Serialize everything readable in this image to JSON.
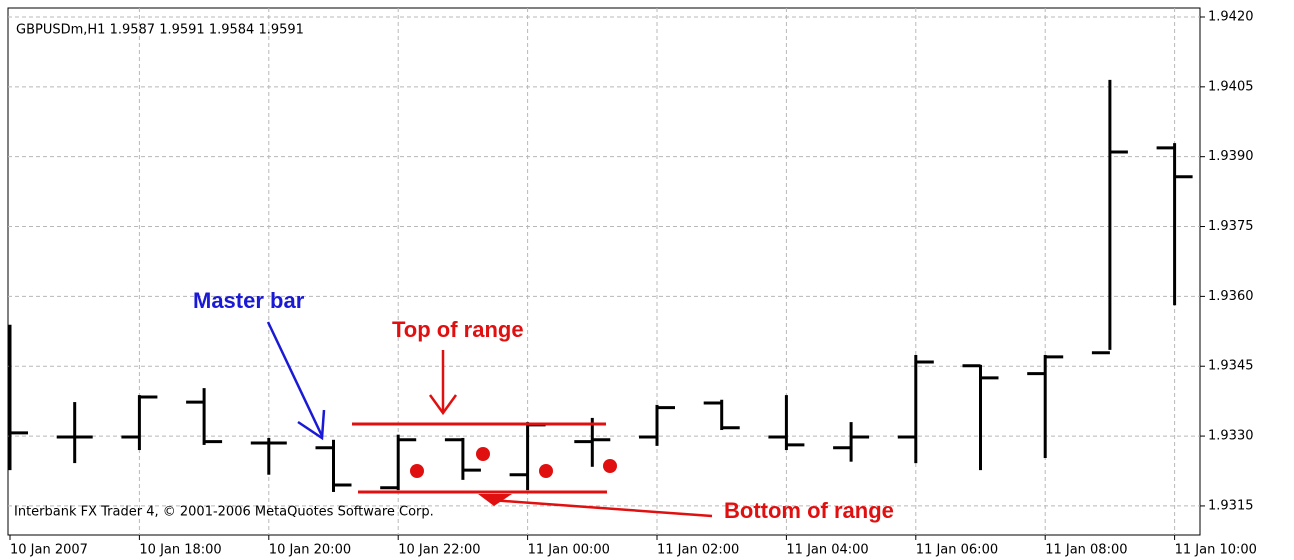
{
  "chart_data": {
    "type": "ohlc",
    "title": "GBPUSDm,H1  1.9587 1.9591 1.9584 1.9591",
    "footer": "Interbank FX Trader 4, © 2001-2006 MetaQuotes Software Corp.",
    "annotations": [
      "Master bar",
      "Top of range",
      "Bottom of range"
    ],
    "categories": [
      "10 Jan 2007",
      null,
      "10 Jan 18:00",
      null,
      "10 Jan 20:00",
      null,
      "10 Jan 22:00",
      null,
      "11 Jan 00:00",
      null,
      "11 Jan 02:00",
      null,
      "11 Jan 04:00",
      null,
      "11 Jan 06:00",
      null,
      "11 Jan 08:00",
      null,
      "11 Jan 10:00"
    ],
    "open": [
      1.93307,
      1.93298,
      1.93298,
      1.93373,
      1.93285,
      1.93275,
      1.93189,
      1.93292,
      1.93217,
      1.93288,
      1.93298,
      1.93371,
      1.93298,
      1.93275,
      1.93298,
      1.93451,
      1.93434,
      1.93479,
      1.93919
    ],
    "high": [
      1.93539,
      1.93373,
      1.93388,
      1.93403,
      1.93296,
      1.93292,
      1.93303,
      1.93296,
      1.9333,
      1.93339,
      1.93367,
      1.93378,
      1.93388,
      1.9333,
      1.93474,
      1.93453,
      1.93474,
      1.94065,
      1.93929
    ],
    "low": [
      1.93227,
      1.93242,
      1.9327,
      1.93281,
      1.93217,
      1.9318,
      1.93184,
      1.93206,
      1.93184,
      1.93234,
      1.93279,
      1.93313,
      1.9327,
      1.93245,
      1.93242,
      1.93227,
      1.93253,
      1.93485,
      1.93581
    ],
    "close": [
      1.93307,
      1.93298,
      1.93384,
      1.93288,
      1.93285,
      1.93195,
      1.93292,
      1.93227,
      1.93324,
      1.93292,
      1.93361,
      1.93318,
      1.93281,
      1.93298,
      1.93459,
      1.93425,
      1.9347,
      1.9391,
      1.93857
    ],
    "color": "#000000",
    "ylim": [
      1.93094,
      1.94215
    ],
    "yticks": [
      {
        "value": 1.942,
        "label": "1.9420"
      },
      1.9405,
      {
        "value": 1.939,
        "label": "1.9390"
      },
      1.9375,
      {
        "value": 1.936,
        "label": "1.9360"
      },
      1.9345,
      {
        "value": 1.933,
        "label": "1.9330"
      },
      1.9315
    ],
    "grid": true
  }
}
